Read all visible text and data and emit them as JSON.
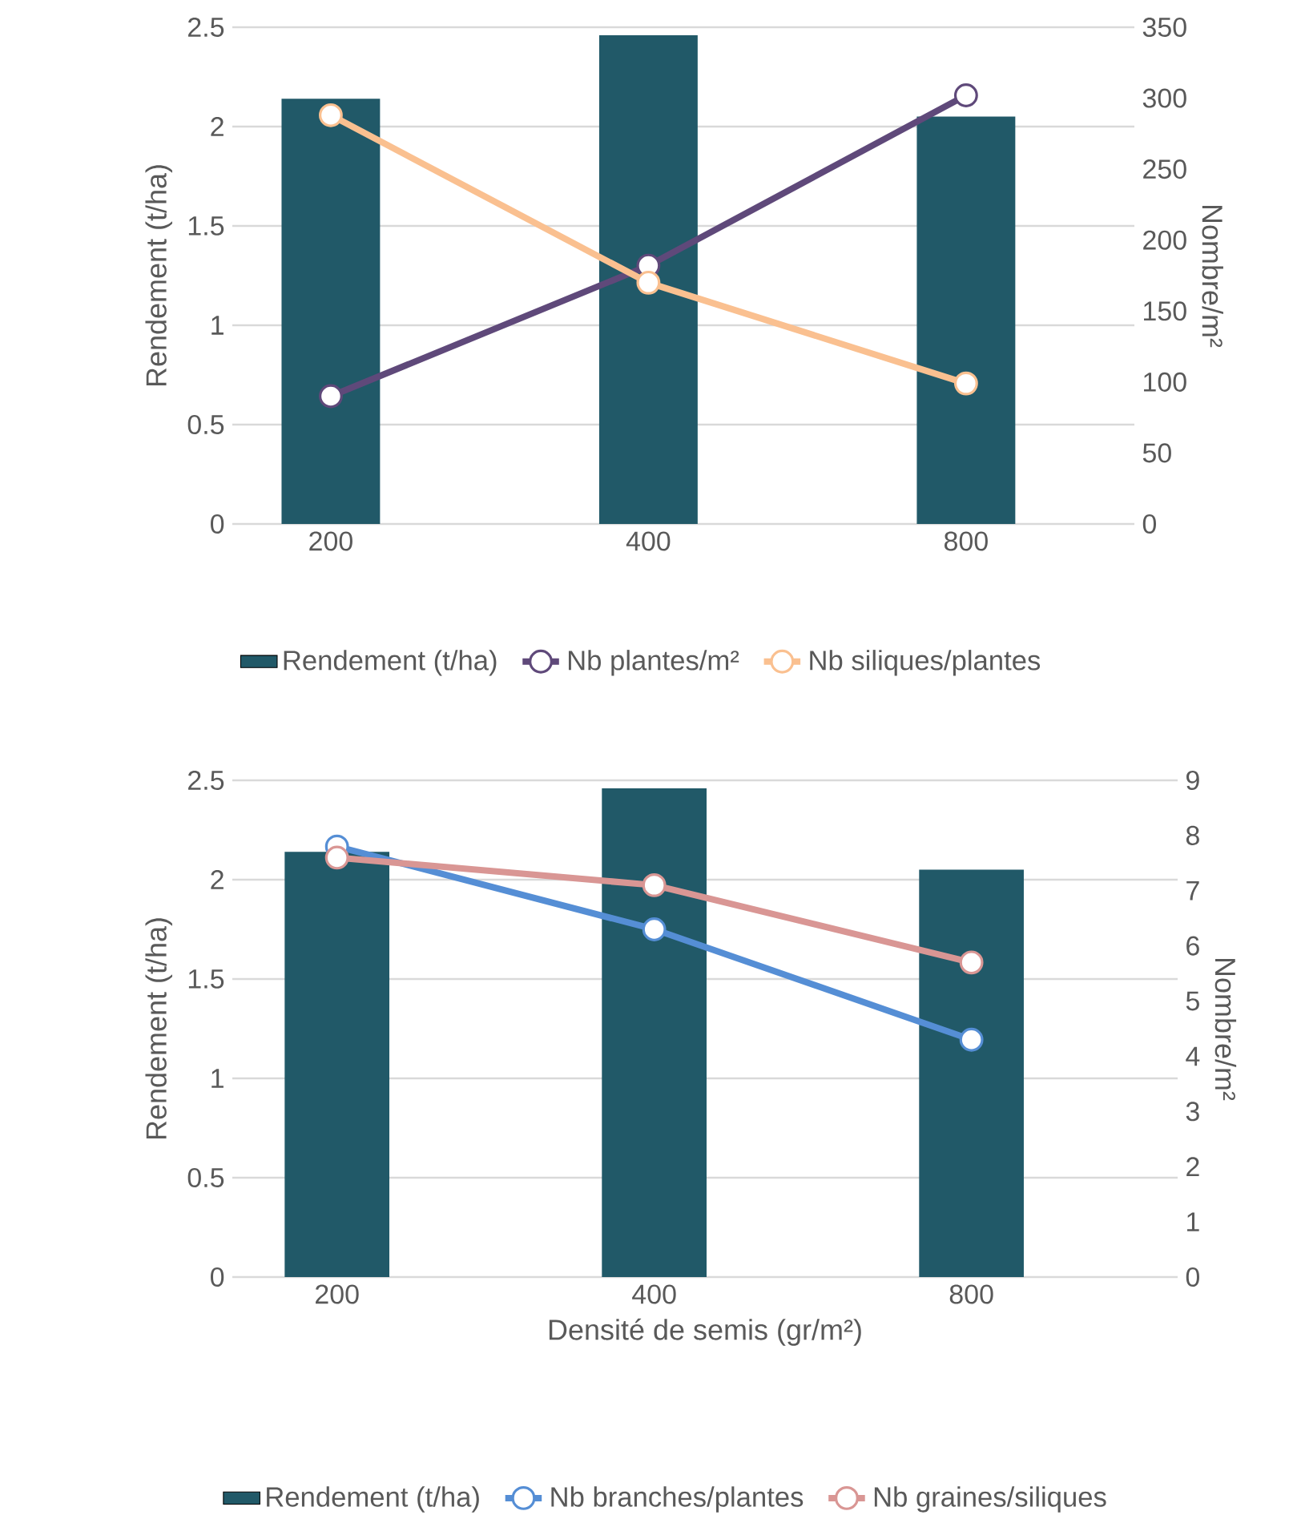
{
  "chart_data": [
    {
      "type": "bar",
      "categories": [
        "200",
        "400",
        "800"
      ],
      "ylabel": "Rendement (t/ha)",
      "y2label": "Nombre/m²",
      "ylim": [
        0,
        2.5
      ],
      "yticks": [
        0,
        0.5,
        1,
        1.5,
        2,
        2.5
      ],
      "y2lim": [
        0,
        350
      ],
      "y2ticks": [
        0,
        50,
        100,
        150,
        200,
        250,
        300,
        350
      ],
      "grid": "y",
      "legend": "bottom",
      "marker": "circle",
      "series": [
        {
          "name": "Rendement (t/ha)",
          "color": "#215968",
          "values": [
            2.14,
            2.46,
            2.05
          ]
        },
        {
          "name": "Nb plantes/m²",
          "type": "line",
          "axis": "y2",
          "color": "#5f497a",
          "values": [
            90,
            182,
            302
          ]
        },
        {
          "name": "Nb siliques/plantes",
          "type": "line",
          "axis": "y2",
          "color": "#fac090",
          "values": [
            288,
            170,
            99
          ]
        }
      ]
    },
    {
      "type": "bar",
      "categories": [
        "200",
        "400",
        "800"
      ],
      "xlabel": "Densité de semis (gr/m²)",
      "ylabel": "Rendement (t/ha)",
      "y2label": "Nombre/m²",
      "ylim": [
        0,
        2.5
      ],
      "yticks": [
        0,
        0.5,
        1,
        1.5,
        2,
        2.5
      ],
      "y2lim": [
        0,
        9
      ],
      "y2ticks": [
        0,
        1,
        2,
        3,
        4,
        5,
        6,
        7,
        8,
        9
      ],
      "grid": "y",
      "legend": "bottom",
      "marker": "circle",
      "series": [
        {
          "name": "Rendement (t/ha)",
          "color": "#215968",
          "values": [
            2.14,
            2.46,
            2.05
          ]
        },
        {
          "name": "Nb branches/plantes",
          "type": "line",
          "axis": "y2",
          "color": "#558ed5",
          "values": [
            7.8,
            6.3,
            4.3
          ]
        },
        {
          "name": "Nb graines/siliques",
          "type": "line",
          "axis": "y2",
          "color": "#d99694",
          "values": [
            7.6,
            7.1,
            5.7
          ]
        }
      ]
    }
  ]
}
